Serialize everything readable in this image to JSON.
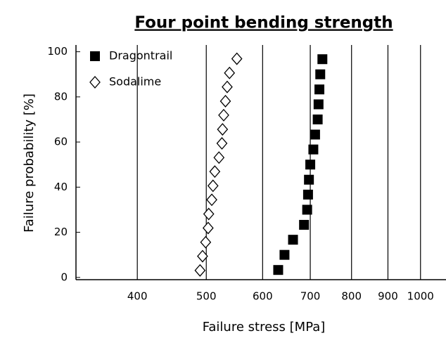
{
  "chart_data": {
    "type": "scatter",
    "title": "Four point bending strength",
    "xlabel": "Failure stress [MPa]",
    "ylabel": "Failure probability [%]",
    "xscale": "log",
    "xlim": [
      328,
      1086
    ],
    "xticks": [
      400,
      500,
      600,
      700,
      800,
      900,
      1000
    ],
    "ylim": [
      -1,
      103
    ],
    "yticks": [
      0,
      20,
      40,
      60,
      80,
      100
    ],
    "grid": "x",
    "legend": "upper left",
    "series": [
      {
        "name": "Dragontrail",
        "color": "#000000",
        "marker": "square",
        "x": [
          631,
          644,
          662,
          686,
          693,
          695,
          697,
          700,
          707,
          711,
          717,
          719,
          721,
          723,
          728
        ],
        "values": [
          3.3,
          10,
          16.7,
          23.3,
          30,
          36.7,
          43.3,
          50,
          56.7,
          63.3,
          70,
          76.7,
          83.3,
          90,
          96.7
        ]
      },
      {
        "name": "Sodalime",
        "color": "#000000",
        "marker": "diamond",
        "x": [
          490,
          494,
          499,
          503,
          504,
          509,
          511,
          514,
          521,
          526,
          527,
          529,
          532,
          535,
          539,
          552
        ],
        "values": [
          3.1,
          9.4,
          15.6,
          21.9,
          28.1,
          34.4,
          40.6,
          46.9,
          53.1,
          59.4,
          65.6,
          71.9,
          78.1,
          84.4,
          90.6,
          96.9
        ]
      }
    ]
  }
}
